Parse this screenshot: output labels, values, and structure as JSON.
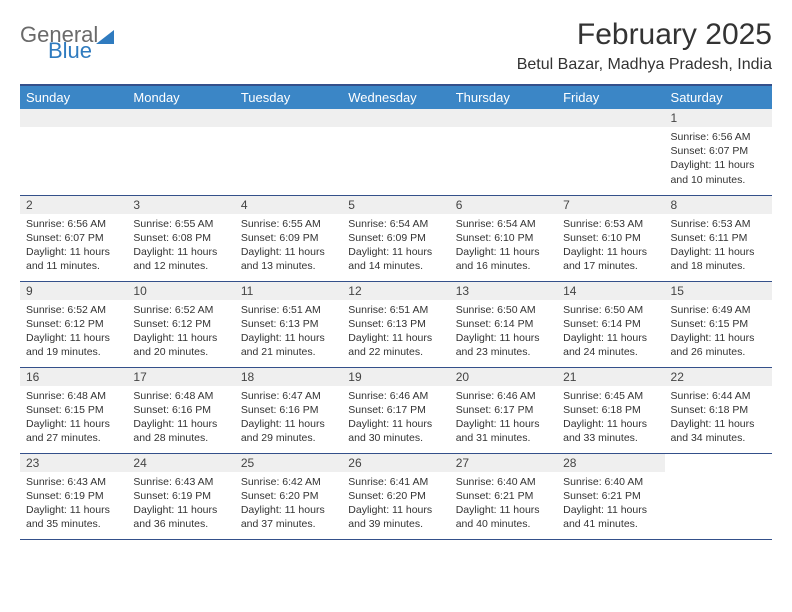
{
  "logo": {
    "word1": "General",
    "word2": "Blue"
  },
  "title": "February 2025",
  "subtitle": "Betul Bazar, Madhya Pradesh, India",
  "colors": {
    "header_bg": "#3b86c6",
    "header_border_top": "#34508a",
    "row_border": "#34508a",
    "daynum_bg": "#efefef",
    "text": "#333333",
    "logo_gray": "#6a6a6a",
    "logo_blue": "#2f7bbf",
    "page_bg": "#ffffff"
  },
  "typography": {
    "title_fontsize": 30,
    "subtitle_fontsize": 16,
    "dayheader_fontsize": 13,
    "daynum_fontsize": 12,
    "body_fontsize": 10.5
  },
  "days_of_week": [
    "Sunday",
    "Monday",
    "Tuesday",
    "Wednesday",
    "Thursday",
    "Friday",
    "Saturday"
  ],
  "weeks": [
    [
      null,
      null,
      null,
      null,
      null,
      null,
      {
        "n": "1",
        "sunrise": "Sunrise: 6:56 AM",
        "sunset": "Sunset: 6:07 PM",
        "daylight": "Daylight: 11 hours and 10 minutes."
      }
    ],
    [
      {
        "n": "2",
        "sunrise": "Sunrise: 6:56 AM",
        "sunset": "Sunset: 6:07 PM",
        "daylight": "Daylight: 11 hours and 11 minutes."
      },
      {
        "n": "3",
        "sunrise": "Sunrise: 6:55 AM",
        "sunset": "Sunset: 6:08 PM",
        "daylight": "Daylight: 11 hours and 12 minutes."
      },
      {
        "n": "4",
        "sunrise": "Sunrise: 6:55 AM",
        "sunset": "Sunset: 6:09 PM",
        "daylight": "Daylight: 11 hours and 13 minutes."
      },
      {
        "n": "5",
        "sunrise": "Sunrise: 6:54 AM",
        "sunset": "Sunset: 6:09 PM",
        "daylight": "Daylight: 11 hours and 14 minutes."
      },
      {
        "n": "6",
        "sunrise": "Sunrise: 6:54 AM",
        "sunset": "Sunset: 6:10 PM",
        "daylight": "Daylight: 11 hours and 16 minutes."
      },
      {
        "n": "7",
        "sunrise": "Sunrise: 6:53 AM",
        "sunset": "Sunset: 6:10 PM",
        "daylight": "Daylight: 11 hours and 17 minutes."
      },
      {
        "n": "8",
        "sunrise": "Sunrise: 6:53 AM",
        "sunset": "Sunset: 6:11 PM",
        "daylight": "Daylight: 11 hours and 18 minutes."
      }
    ],
    [
      {
        "n": "9",
        "sunrise": "Sunrise: 6:52 AM",
        "sunset": "Sunset: 6:12 PM",
        "daylight": "Daylight: 11 hours and 19 minutes."
      },
      {
        "n": "10",
        "sunrise": "Sunrise: 6:52 AM",
        "sunset": "Sunset: 6:12 PM",
        "daylight": "Daylight: 11 hours and 20 minutes."
      },
      {
        "n": "11",
        "sunrise": "Sunrise: 6:51 AM",
        "sunset": "Sunset: 6:13 PM",
        "daylight": "Daylight: 11 hours and 21 minutes."
      },
      {
        "n": "12",
        "sunrise": "Sunrise: 6:51 AM",
        "sunset": "Sunset: 6:13 PM",
        "daylight": "Daylight: 11 hours and 22 minutes."
      },
      {
        "n": "13",
        "sunrise": "Sunrise: 6:50 AM",
        "sunset": "Sunset: 6:14 PM",
        "daylight": "Daylight: 11 hours and 23 minutes."
      },
      {
        "n": "14",
        "sunrise": "Sunrise: 6:50 AM",
        "sunset": "Sunset: 6:14 PM",
        "daylight": "Daylight: 11 hours and 24 minutes."
      },
      {
        "n": "15",
        "sunrise": "Sunrise: 6:49 AM",
        "sunset": "Sunset: 6:15 PM",
        "daylight": "Daylight: 11 hours and 26 minutes."
      }
    ],
    [
      {
        "n": "16",
        "sunrise": "Sunrise: 6:48 AM",
        "sunset": "Sunset: 6:15 PM",
        "daylight": "Daylight: 11 hours and 27 minutes."
      },
      {
        "n": "17",
        "sunrise": "Sunrise: 6:48 AM",
        "sunset": "Sunset: 6:16 PM",
        "daylight": "Daylight: 11 hours and 28 minutes."
      },
      {
        "n": "18",
        "sunrise": "Sunrise: 6:47 AM",
        "sunset": "Sunset: 6:16 PM",
        "daylight": "Daylight: 11 hours and 29 minutes."
      },
      {
        "n": "19",
        "sunrise": "Sunrise: 6:46 AM",
        "sunset": "Sunset: 6:17 PM",
        "daylight": "Daylight: 11 hours and 30 minutes."
      },
      {
        "n": "20",
        "sunrise": "Sunrise: 6:46 AM",
        "sunset": "Sunset: 6:17 PM",
        "daylight": "Daylight: 11 hours and 31 minutes."
      },
      {
        "n": "21",
        "sunrise": "Sunrise: 6:45 AM",
        "sunset": "Sunset: 6:18 PM",
        "daylight": "Daylight: 11 hours and 33 minutes."
      },
      {
        "n": "22",
        "sunrise": "Sunrise: 6:44 AM",
        "sunset": "Sunset: 6:18 PM",
        "daylight": "Daylight: 11 hours and 34 minutes."
      }
    ],
    [
      {
        "n": "23",
        "sunrise": "Sunrise: 6:43 AM",
        "sunset": "Sunset: 6:19 PM",
        "daylight": "Daylight: 11 hours and 35 minutes."
      },
      {
        "n": "24",
        "sunrise": "Sunrise: 6:43 AM",
        "sunset": "Sunset: 6:19 PM",
        "daylight": "Daylight: 11 hours and 36 minutes."
      },
      {
        "n": "25",
        "sunrise": "Sunrise: 6:42 AM",
        "sunset": "Sunset: 6:20 PM",
        "daylight": "Daylight: 11 hours and 37 minutes."
      },
      {
        "n": "26",
        "sunrise": "Sunrise: 6:41 AM",
        "sunset": "Sunset: 6:20 PM",
        "daylight": "Daylight: 11 hours and 39 minutes."
      },
      {
        "n": "27",
        "sunrise": "Sunrise: 6:40 AM",
        "sunset": "Sunset: 6:21 PM",
        "daylight": "Daylight: 11 hours and 40 minutes."
      },
      {
        "n": "28",
        "sunrise": "Sunrise: 6:40 AM",
        "sunset": "Sunset: 6:21 PM",
        "daylight": "Daylight: 11 hours and 41 minutes."
      },
      null
    ]
  ]
}
